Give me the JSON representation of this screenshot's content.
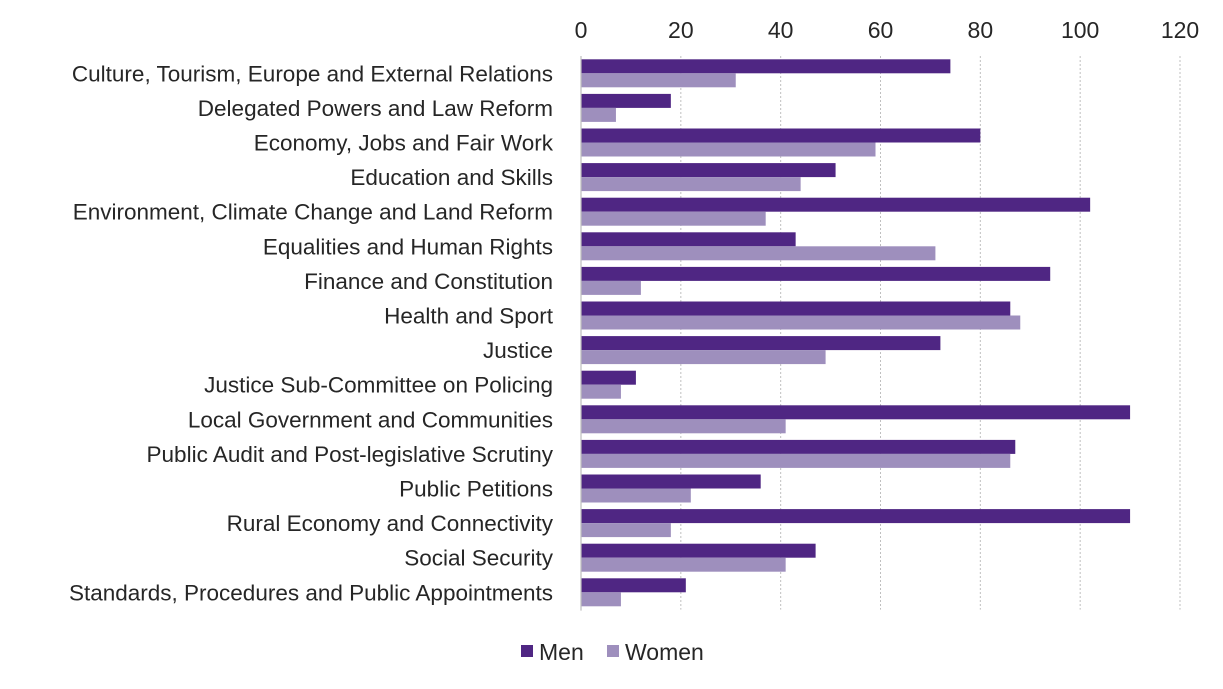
{
  "chart_data": {
    "type": "bar",
    "orientation": "horizontal",
    "title": "",
    "xlabel": "",
    "ylabel": "",
    "xlim": [
      0,
      120
    ],
    "ticks": [
      0,
      20,
      40,
      60,
      80,
      100,
      120
    ],
    "axis_position": "top",
    "grid": true,
    "legend_position": "bottom",
    "categories": [
      "Culture, Tourism, Europe and External Relations",
      "Delegated Powers and Law Reform",
      "Economy, Jobs and Fair Work",
      "Education and Skills",
      "Environment, Climate Change and Land Reform",
      "Equalities and Human Rights",
      "Finance and Constitution",
      "Health and Sport",
      "Justice",
      "Justice Sub-Committee on Policing",
      "Local Government and Communities",
      "Public Audit and Post-legislative Scrutiny",
      "Public Petitions",
      "Rural Economy and Connectivity",
      "Social Security",
      "Standards, Procedures and Public Appointments"
    ],
    "series": [
      {
        "name": "Men",
        "color": "#4f2683",
        "values": [
          74,
          18,
          80,
          51,
          102,
          43,
          94,
          86,
          72,
          11,
          110,
          87,
          36,
          110,
          47,
          21
        ]
      },
      {
        "name": "Women",
        "color": "#9e8fbd",
        "values": [
          31,
          7,
          59,
          44,
          37,
          71,
          12,
          88,
          49,
          8,
          41,
          86,
          22,
          18,
          41,
          8
        ]
      }
    ]
  }
}
